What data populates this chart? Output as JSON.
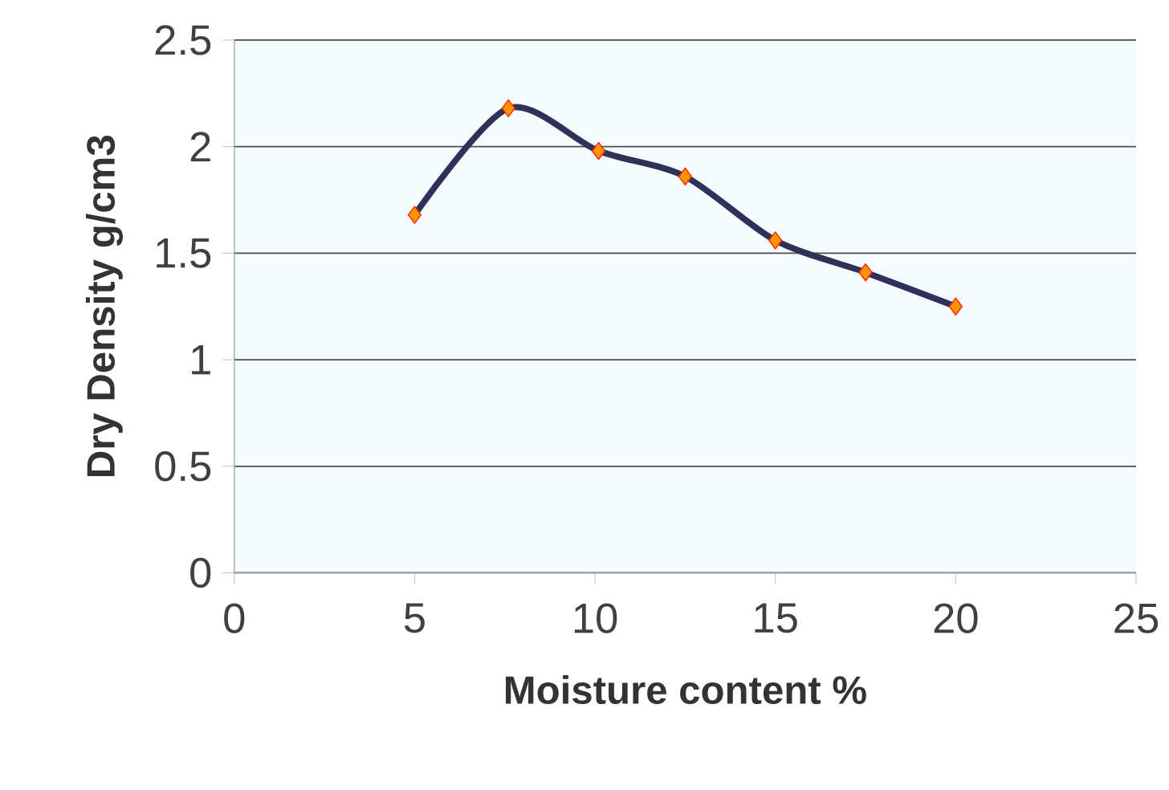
{
  "chart_data": {
    "type": "line",
    "xlabel": "Moisture content %",
    "ylabel": "Dry Density g/cm3",
    "x": [
      5.0,
      7.6,
      10.1,
      12.5,
      15.0,
      17.5,
      20.0
    ],
    "series": [
      {
        "color": "#2e3158",
        "values": [
          1.68,
          2.18,
          1.98,
          1.86,
          1.56,
          1.41,
          1.25
        ]
      }
    ],
    "xlim": [
      0,
      25
    ],
    "xticks": [
      0,
      5,
      10,
      15,
      20,
      25
    ],
    "ylim": [
      0,
      2.5
    ],
    "yticks": [
      0,
      0.5,
      1,
      1.5,
      2,
      2.5
    ],
    "grid": "y",
    "marker": "diamond",
    "line_style": "solid"
  }
}
